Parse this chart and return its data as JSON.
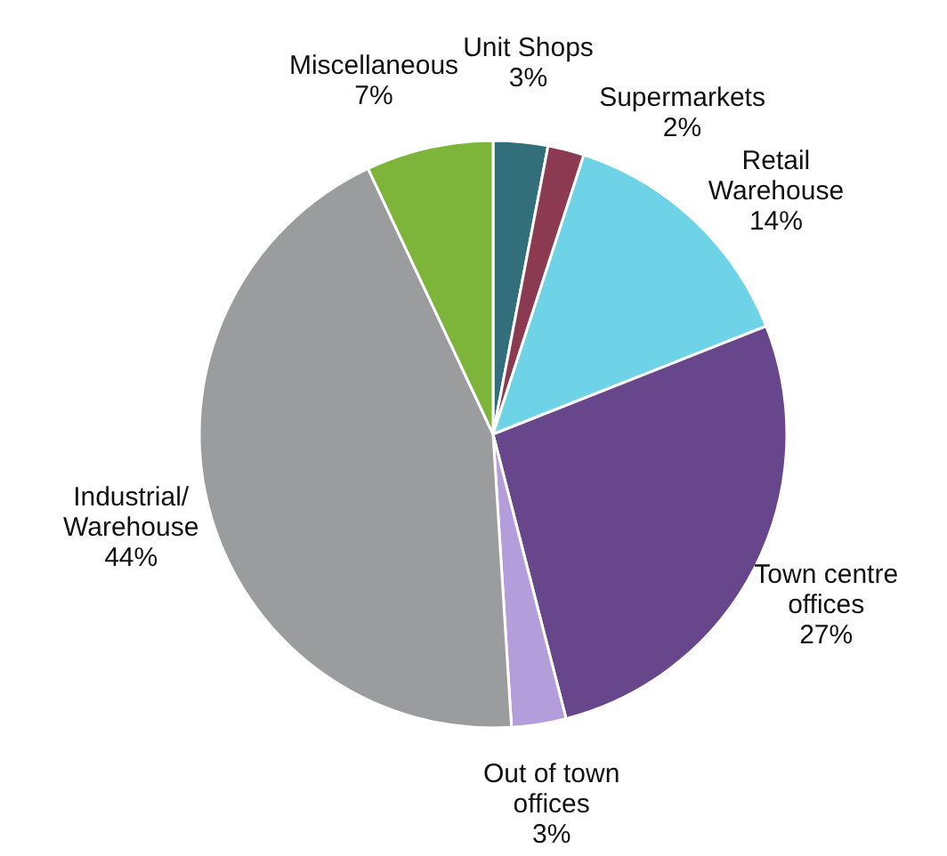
{
  "chart_data": {
    "type": "pie",
    "categories": [
      "Unit Shops",
      "Supermarkets",
      "Retail\nWarehouse",
      "Town centre\noffices",
      "Out of town\noffices",
      "Industrial/\nWarehouse",
      "Miscellaneous"
    ],
    "values": [
      3,
      2,
      14,
      27,
      3,
      44,
      7
    ],
    "value_labels": [
      "3%",
      "2%",
      "14%",
      "27%",
      "3%",
      "44%",
      "7%"
    ],
    "colors": [
      "#336e7b",
      "#8b3a52",
      "#6ed3e6",
      "#67468c",
      "#b39ddb",
      "#9b9c9e",
      "#7cb53a"
    ]
  }
}
